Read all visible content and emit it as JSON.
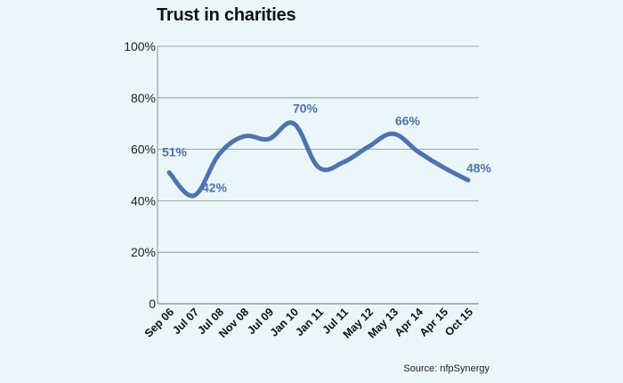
{
  "chart_data": {
    "type": "line",
    "title": "Trust in charities",
    "source": "Source: nfpSynergy",
    "xlabel": "",
    "ylabel": "",
    "ylim": [
      0,
      100
    ],
    "y_ticks": [
      {
        "value": 0,
        "label": "0"
      },
      {
        "value": 20,
        "label": "20%"
      },
      {
        "value": 40,
        "label": "40%"
      },
      {
        "value": 60,
        "label": "60%"
      },
      {
        "value": 80,
        "label": "80%"
      },
      {
        "value": 100,
        "label": "100%"
      }
    ],
    "grid": true,
    "categories": [
      "Sep 06",
      "Jul 07",
      "Jul 08",
      "Nov 08",
      "Jul 09",
      "Jan 10",
      "Jan 11",
      "Jul 11",
      "May 12",
      "May 13",
      "Apr 14",
      "Apr 15",
      "Oct 15"
    ],
    "series": [
      {
        "values": [
          51,
          42,
          58,
          65,
          64,
          70,
          53,
          55,
          61,
          66,
          59,
          53,
          48
        ],
        "color": "#4f73b0"
      }
    ],
    "data_labels": [
      {
        "index": 0,
        "text": "51%"
      },
      {
        "index": 1,
        "text": "42%"
      },
      {
        "index": 5,
        "text": "70%"
      },
      {
        "index": 9,
        "text": "66%"
      },
      {
        "index": 12,
        "text": "48%"
      }
    ],
    "colors": {
      "background": "#eaf6f9",
      "line": "#4f73b0",
      "label": "#4f73b0",
      "grid": "#8a8a8a",
      "text": "#111111"
    }
  }
}
